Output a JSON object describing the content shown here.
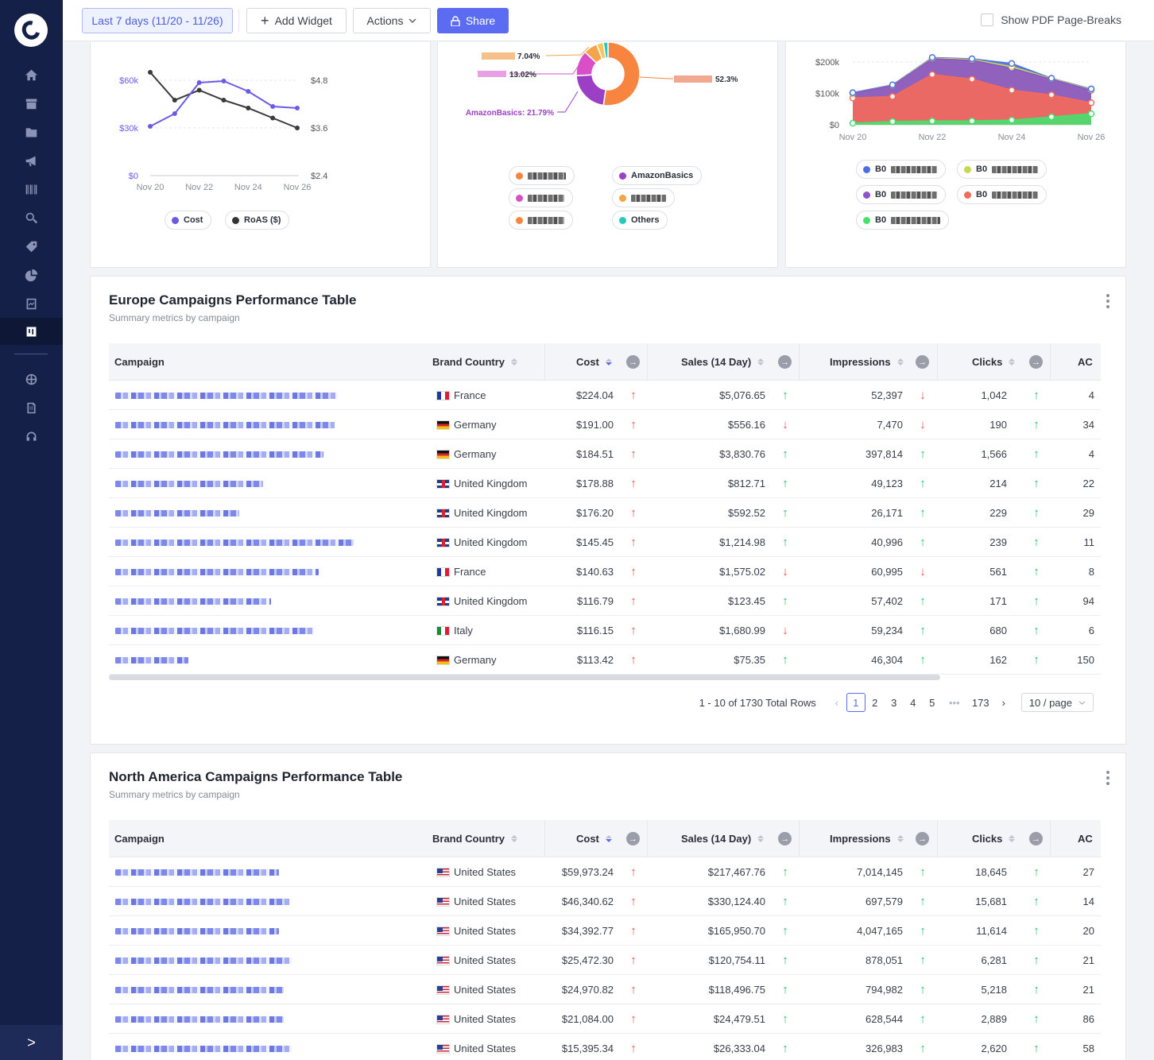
{
  "topbar": {
    "date_range": "Last 7 days (11/20 - 11/26)",
    "add_widget": "Add Widget",
    "actions": "Actions",
    "share": "Share",
    "pdf_toggle": "Show PDF Page-Breaks"
  },
  "colors": {
    "accent": "#5b6cf2",
    "sidebar": "#152048",
    "cost": "#6a5be6",
    "roas": "#333333",
    "up_good": "#2fc26c",
    "down_bad": "#e8574f"
  },
  "cost_roas_chart": {
    "chart_data": {
      "type": "line",
      "x": [
        "Nov 20",
        "Nov 21",
        "Nov 22",
        "Nov 23",
        "Nov 24",
        "Nov 25",
        "Nov 26"
      ],
      "series": [
        {
          "name": "Cost",
          "axis": "left",
          "values": [
            31000,
            39000,
            58500,
            59500,
            53000,
            43500,
            42500
          ]
        },
        {
          "name": "RoAS ($)",
          "axis": "right",
          "values": [
            5.0,
            4.3,
            4.55,
            4.3,
            4.1,
            3.85,
            3.6
          ]
        }
      ],
      "left_ticks": [
        "$60k",
        "$30k",
        "$0"
      ],
      "right_ticks": [
        "$4.8",
        "$3.6",
        "$2.4"
      ],
      "x_ticks": [
        "Nov 20",
        "Nov 22",
        "Nov 24",
        "Nov 26"
      ],
      "ylim_left": [
        0,
        60000
      ],
      "ylim_right": [
        2.4,
        4.8
      ]
    },
    "legend": [
      "Cost",
      "RoAS ($)"
    ]
  },
  "brand_pie": {
    "chart_data": {
      "type": "pie",
      "slices": [
        {
          "label": "[redacted]",
          "value": 52.3,
          "color": "#f7853f"
        },
        {
          "label": "AmazonBasics",
          "value": 21.79,
          "color": "#9b3fc5"
        },
        {
          "label": "[redacted]",
          "value": 13.02,
          "color": "#d94fc8"
        },
        {
          "label": "[redacted]",
          "value": 7.04,
          "color": "#f4a44a"
        },
        {
          "label": "[redacted]",
          "value": 3.5,
          "color": "#f6c55a"
        },
        {
          "label": "Others",
          "value": 2.35,
          "color": "#2cc6c0"
        }
      ],
      "data_labels": [
        "52.3%",
        "21.79%",
        "13.02%",
        "7.04%"
      ],
      "label_amazon": "AmazonBasics: 21.79%"
    },
    "legend": [
      {
        "label": "",
        "color": "#f7853f",
        "redacted": true
      },
      {
        "label": "AmazonBasics",
        "color": "#9b3fc5",
        "redacted": false
      },
      {
        "label": "",
        "color": "#d94fc8",
        "redacted": true
      },
      {
        "label": "",
        "color": "#f4a44a",
        "redacted": true
      },
      {
        "label": "",
        "color": "#f7853f",
        "redacted": true
      },
      {
        "label": "Others",
        "color": "#2cc6c0",
        "redacted": false
      }
    ]
  },
  "asin_area": {
    "chart_data": {
      "type": "area",
      "x": [
        "Nov 20",
        "Nov 21",
        "Nov 22",
        "Nov 23",
        "Nov 24",
        "Nov 25",
        "Nov 26"
      ],
      "series": [
        {
          "name": "B0 (green)",
          "color": "#47e06d",
          "values": [
            5000,
            10000,
            12000,
            12000,
            15000,
            25000,
            35000
          ]
        },
        {
          "name": "B0 (red)",
          "color": "#f46a5a",
          "values": [
            85000,
            90000,
            160000,
            145000,
            110000,
            95000,
            70000
          ]
        },
        {
          "name": "B0 (purple)",
          "color": "#8b54c8",
          "values": [
            100000,
            125000,
            210000,
            205000,
            180000,
            145000,
            110000
          ]
        },
        {
          "name": "B0 (yellow)",
          "color": "#c8d84a",
          "values": [
            100000,
            126000,
            212000,
            208000,
            185000,
            147000,
            112000
          ]
        },
        {
          "name": "B0 (blue)",
          "color": "#4c6fe0",
          "values": [
            102000,
            127000,
            214000,
            210000,
            195000,
            148000,
            114000
          ]
        }
      ],
      "y_ticks": [
        "$200k",
        "$100k",
        "$0"
      ],
      "x_ticks": [
        "Nov 20",
        "Nov 22",
        "Nov 24",
        "Nov 26"
      ],
      "ylim": [
        0,
        220000
      ]
    },
    "legend": [
      {
        "prefix": "B0",
        "color": "#4c6fe0"
      },
      {
        "prefix": "B0",
        "color": "#c8d84a"
      },
      {
        "prefix": "B0",
        "color": "#8b54c8"
      },
      {
        "prefix": "B0",
        "color": "#f46a5a"
      },
      {
        "prefix": "B0",
        "color": "#47e06d"
      }
    ]
  },
  "europe_table": {
    "title": "Europe Campaigns Performance Table",
    "subtitle": "Summary metrics by campaign",
    "columns": [
      "Campaign",
      "Brand Country",
      "Cost",
      "Sales (14 Day)",
      "Impressions",
      "Clicks",
      "AC"
    ],
    "rows": [
      {
        "country": "France",
        "flag": "fr",
        "cost": "$224.04",
        "cost_dir": "up-red",
        "sales": "$5,076.65",
        "sales_dir": "up-green",
        "impr": "52,397",
        "impr_dir": "dn-red",
        "clicks": "1,042",
        "clicks_dir": "up-green",
        "ac": "4",
        "blur": 280
      },
      {
        "country": "Germany",
        "flag": "de",
        "cost": "$191.00",
        "cost_dir": "up-red",
        "sales": "$556.16",
        "sales_dir": "dn-red",
        "impr": "7,470",
        "impr_dir": "dn-red",
        "clicks": "190",
        "clicks_dir": "up-green",
        "ac": "34",
        "blur": 276
      },
      {
        "country": "Germany",
        "flag": "de",
        "cost": "$184.51",
        "cost_dir": "up-red",
        "sales": "$3,830.76",
        "sales_dir": "up-green",
        "impr": "397,814",
        "impr_dir": "up-green",
        "clicks": "1,566",
        "clicks_dir": "up-green",
        "ac": "4",
        "blur": 262
      },
      {
        "country": "United Kingdom",
        "flag": "uk",
        "cost": "$178.88",
        "cost_dir": "up-red",
        "sales": "$812.71",
        "sales_dir": "up-green",
        "impr": "49,123",
        "impr_dir": "up-green",
        "clicks": "214",
        "clicks_dir": "up-green",
        "ac": "22",
        "blur": 186
      },
      {
        "country": "United Kingdom",
        "flag": "uk",
        "cost": "$176.20",
        "cost_dir": "up-red",
        "sales": "$592.52",
        "sales_dir": "up-green",
        "impr": "26,171",
        "impr_dir": "up-green",
        "clicks": "229",
        "clicks_dir": "up-green",
        "ac": "29",
        "blur": 156
      },
      {
        "country": "United Kingdom",
        "flag": "uk",
        "cost": "$145.45",
        "cost_dir": "up-red",
        "sales": "$1,214.98",
        "sales_dir": "up-green",
        "impr": "40,996",
        "impr_dir": "up-green",
        "clicks": "239",
        "clicks_dir": "up-green",
        "ac": "11",
        "blur": 312
      },
      {
        "country": "France",
        "flag": "fr",
        "cost": "$140.63",
        "cost_dir": "up-red",
        "sales": "$1,575.02",
        "sales_dir": "dn-red",
        "impr": "60,995",
        "impr_dir": "dn-red",
        "clicks": "561",
        "clicks_dir": "up-green",
        "ac": "8",
        "blur": 256
      },
      {
        "country": "United Kingdom",
        "flag": "uk",
        "cost": "$116.79",
        "cost_dir": "up-red",
        "sales": "$123.45",
        "sales_dir": "up-green",
        "impr": "57,402",
        "impr_dir": "up-green",
        "clicks": "171",
        "clicks_dir": "up-green",
        "ac": "94",
        "blur": 196
      },
      {
        "country": "Italy",
        "flag": "it",
        "cost": "$116.15",
        "cost_dir": "up-red",
        "sales": "$1,680.99",
        "sales_dir": "dn-red",
        "impr": "59,234",
        "impr_dir": "up-green",
        "clicks": "680",
        "clicks_dir": "up-green",
        "ac": "6",
        "blur": 250
      },
      {
        "country": "Germany",
        "flag": "de",
        "cost": "$113.42",
        "cost_dir": "up-red",
        "sales": "$75.35",
        "sales_dir": "up-green",
        "impr": "46,304",
        "impr_dir": "up-green",
        "clicks": "162",
        "clicks_dir": "up-green",
        "ac": "150",
        "blur": 92
      }
    ],
    "pagination": {
      "total": "1 - 10 of 1730 Total Rows",
      "pages": [
        "1",
        "2",
        "3",
        "4",
        "5",
        "•••",
        "173"
      ],
      "page_size": "10 / page"
    }
  },
  "na_table": {
    "title": "North America Campaigns Performance Table",
    "subtitle": "Summary metrics by campaign",
    "columns": [
      "Campaign",
      "Brand Country",
      "Cost",
      "Sales (14 Day)",
      "Impressions",
      "Clicks",
      "AC"
    ],
    "rows": [
      {
        "country": "United States",
        "flag": "us",
        "cost": "$59,973.24",
        "cost_dir": "up-red",
        "sales": "$217,467.76",
        "sales_dir": "up-green",
        "impr": "7,014,145",
        "impr_dir": "up-green",
        "clicks": "18,645",
        "clicks_dir": "up-green",
        "ac": "27",
        "blur": 206
      },
      {
        "country": "United States",
        "flag": "us",
        "cost": "$46,340.62",
        "cost_dir": "up-red",
        "sales": "$330,124.40",
        "sales_dir": "up-green",
        "impr": "697,579",
        "impr_dir": "up-green",
        "clicks": "15,681",
        "clicks_dir": "up-green",
        "ac": "14",
        "blur": 220
      },
      {
        "country": "United States",
        "flag": "us",
        "cost": "$34,392.77",
        "cost_dir": "up-red",
        "sales": "$165,950.70",
        "sales_dir": "up-green",
        "impr": "4,047,165",
        "impr_dir": "up-green",
        "clicks": "11,614",
        "clicks_dir": "up-green",
        "ac": "20",
        "blur": 206
      },
      {
        "country": "United States",
        "flag": "us",
        "cost": "$25,472.30",
        "cost_dir": "up-red",
        "sales": "$120,754.11",
        "sales_dir": "up-green",
        "impr": "878,051",
        "impr_dir": "up-green",
        "clicks": "6,281",
        "clicks_dir": "up-green",
        "ac": "21",
        "blur": 222
      },
      {
        "country": "United States",
        "flag": "us",
        "cost": "$24,970.82",
        "cost_dir": "up-red",
        "sales": "$118,496.75",
        "sales_dir": "up-green",
        "impr": "794,982",
        "impr_dir": "up-green",
        "clicks": "5,218",
        "clicks_dir": "up-green",
        "ac": "21",
        "blur": 212
      },
      {
        "country": "United States",
        "flag": "us",
        "cost": "$21,084.00",
        "cost_dir": "up-red",
        "sales": "$24,479.51",
        "sales_dir": "up-green",
        "impr": "628,544",
        "impr_dir": "up-green",
        "clicks": "2,889",
        "clicks_dir": "up-green",
        "ac": "86",
        "blur": 212
      },
      {
        "country": "United States",
        "flag": "us",
        "cost": "$15,395.34",
        "cost_dir": "up-red",
        "sales": "$26,333.04",
        "sales_dir": "up-green",
        "impr": "326,983",
        "impr_dir": "up-green",
        "clicks": "2,620",
        "clicks_dir": "up-green",
        "ac": "58",
        "blur": 222
      }
    ]
  },
  "sidebar": {
    "icons": [
      "home-icon",
      "store-icon",
      "folder-icon",
      "megaphone-icon",
      "barcode-icon",
      "search-icon",
      "tag-icon",
      "pie-chart-icon",
      "report-icon",
      "dashboard-icon",
      "globe-icon",
      "document-icon",
      "headset-icon"
    ],
    "expand": ">"
  }
}
